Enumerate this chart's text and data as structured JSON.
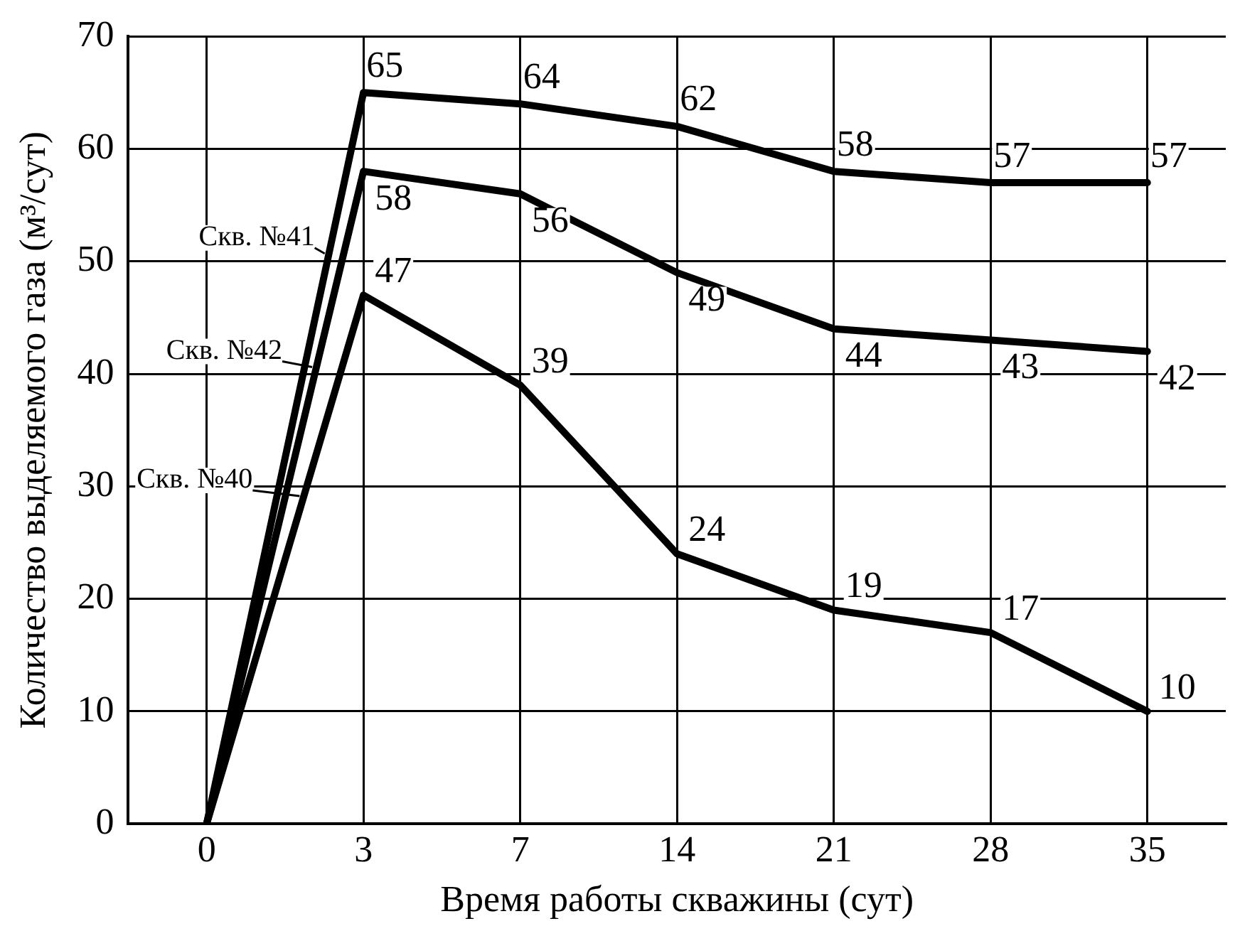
{
  "chart_data": {
    "type": "line",
    "xlabel": "Время работы скважины (сут)",
    "ylabel": "Количество выделяемого газа (м³/сут)",
    "categories": [
      "0",
      "3",
      "7",
      "14",
      "21",
      "28",
      "35"
    ],
    "series": [
      {
        "name": "Скв. №41",
        "color": "#000000",
        "values": [
          0,
          65,
          64,
          62,
          58,
          57,
          57
        ],
        "value_labels": [
          null,
          "65",
          "64",
          "62",
          "58",
          "57",
          "57"
        ]
      },
      {
        "name": "Скв. №42",
        "color": "#000000",
        "values": [
          0,
          58,
          56,
          49,
          44,
          43,
          42
        ],
        "value_labels": [
          null,
          "58",
          "56",
          "49",
          "44",
          "43",
          "42"
        ]
      },
      {
        "name": "Скв. №40",
        "color": "#000000",
        "values": [
          0,
          47,
          39,
          24,
          19,
          17,
          10
        ],
        "value_labels": [
          null,
          "47",
          "39",
          "24",
          "19",
          "17",
          "10"
        ]
      }
    ],
    "ylim": [
      0,
      70
    ],
    "yticks": [
      0,
      10,
      20,
      30,
      40,
      50,
      60,
      70
    ],
    "grid": true,
    "legend": "left",
    "marker": "none",
    "line_style": "solid"
  }
}
